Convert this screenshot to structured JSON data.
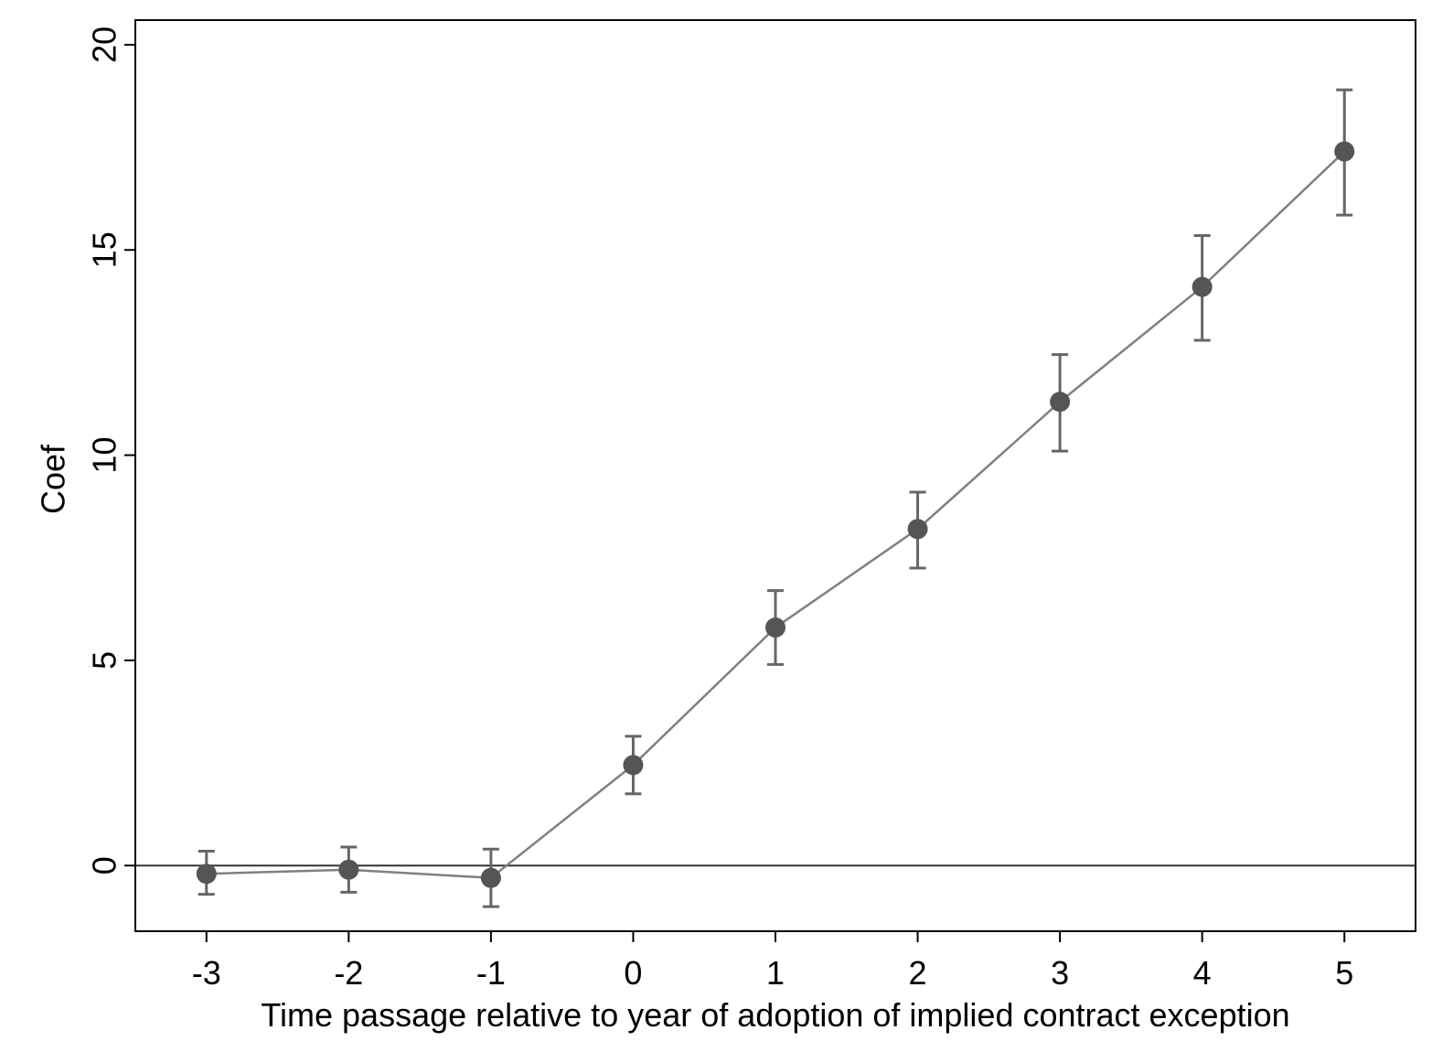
{
  "chart_data": {
    "type": "line",
    "title": "",
    "xlabel": "Time passage relative to year of adoption of implied contract exception",
    "ylabel": "Coef",
    "x": [
      -3,
      -2,
      -1,
      0,
      1,
      2,
      3,
      4,
      5
    ],
    "x_tick_labels": [
      "-3",
      "-2",
      "-1",
      "0",
      "1",
      "2",
      "3",
      "4",
      "5"
    ],
    "xlim": [
      -3.5,
      5.5
    ],
    "y_ticks": [
      0,
      5,
      10,
      15,
      20
    ],
    "y_tick_labels": [
      "0",
      "5",
      "10",
      "15",
      "20"
    ],
    "ylim": [
      -1.6,
      20.6
    ],
    "series": [
      {
        "values": [
          -0.2,
          -0.1,
          -0.3,
          2.45,
          5.8,
          8.2,
          11.3,
          14.1,
          17.4
        ],
        "ci_lower": [
          -0.7,
          -0.65,
          -1.0,
          1.75,
          4.9,
          7.25,
          10.1,
          12.8,
          15.85
        ],
        "ci_upper": [
          0.35,
          0.45,
          0.4,
          3.15,
          6.7,
          9.1,
          12.45,
          15.35,
          18.9
        ]
      }
    ],
    "reference_line_y": 0,
    "grid": false,
    "colors": {
      "line": "#808080",
      "marker": "#555555",
      "errorbar": "#666666",
      "refline": "#333333",
      "axis": "#000000"
    }
  }
}
